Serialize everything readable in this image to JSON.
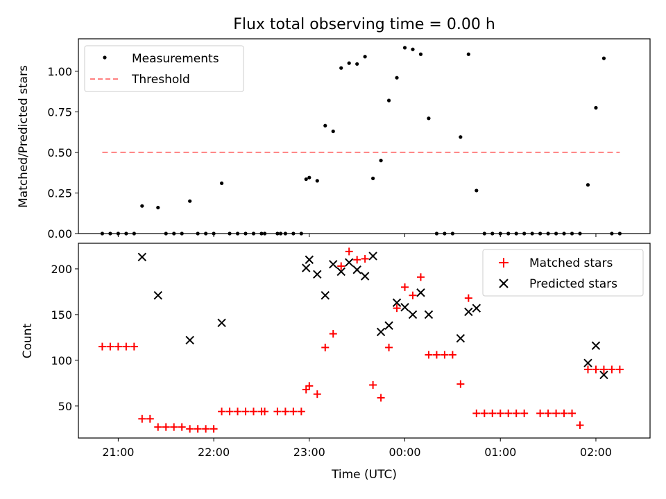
{
  "chart_data": [
    {
      "type": "scatter",
      "title": "Flux total observing time = 0.00 h",
      "xlabel": "",
      "ylabel": "Matched/Predicted stars",
      "ylim": [
        0.0,
        1.2
      ],
      "xlim": [
        "20:35",
        "02:34"
      ],
      "yticks": [
        "0.00",
        "0.25",
        "0.50",
        "0.75",
        "1.00"
      ],
      "legend_position": "top-left",
      "colors": {
        "measurements": "#000000",
        "threshold": "#ff8080"
      },
      "series": [
        {
          "name": "Measurements",
          "marker": "dot",
          "x": [
            "20:50",
            "20:55",
            "21:00",
            "21:05",
            "21:10",
            "21:15",
            "21:25",
            "21:30",
            "21:35",
            "21:40",
            "21:45",
            "21:50",
            "21:55",
            "22:00",
            "22:05",
            "22:10",
            "22:15",
            "22:20",
            "22:25",
            "22:30",
            "22:32",
            "22:40",
            "22:42",
            "22:45",
            "22:50",
            "22:55",
            "22:58",
            "23:00",
            "23:05",
            "23:10",
            "23:15",
            "23:20",
            "23:25",
            "23:30",
            "23:35",
            "23:40",
            "23:45",
            "23:50",
            "23:55",
            "00:00",
            "00:05",
            "00:10",
            "00:15",
            "00:20",
            "00:25",
            "00:30",
            "00:35",
            "00:40",
            "00:45",
            "00:50",
            "00:55",
            "01:00",
            "01:05",
            "01:10",
            "01:15",
            "01:20",
            "01:25",
            "01:30",
            "01:35",
            "01:40",
            "01:45",
            "01:50",
            "01:55",
            "02:00",
            "02:05",
            "02:10",
            "02:15"
          ],
          "y": [
            0.0,
            0.0,
            0.0,
            0.0,
            0.0,
            0.17,
            0.16,
            0.0,
            0.0,
            0.0,
            0.2,
            0.0,
            0.0,
            0.0,
            0.31,
            0.0,
            0.0,
            0.0,
            0.0,
            0.0,
            0.0,
            0.0,
            0.0,
            0.0,
            0.0,
            0.0,
            0.335,
            0.345,
            0.325,
            0.665,
            0.63,
            1.02,
            1.05,
            1.045,
            1.09,
            0.34,
            0.45,
            0.82,
            0.96,
            1.145,
            1.135,
            1.105,
            0.71,
            0.0,
            0.0,
            0.0,
            0.595,
            1.105,
            0.265,
            0.0,
            0.0,
            0.0,
            0.0,
            0.0,
            0.0,
            0.0,
            0.0,
            0.0,
            0.0,
            0.0,
            0.0,
            0.0,
            0.3,
            0.775,
            1.08,
            0.0,
            0.0
          ]
        },
        {
          "name": "Threshold",
          "style": "dashed-line",
          "x": [
            "20:50",
            "02:15"
          ],
          "y": [
            0.5,
            0.5
          ]
        }
      ]
    },
    {
      "type": "scatter",
      "title": "",
      "xlabel": "Time (UTC)",
      "ylabel": "Count",
      "ylim": [
        15,
        228
      ],
      "xlim": [
        "20:35",
        "02:34"
      ],
      "yticks": [
        "50",
        "100",
        "150",
        "200"
      ],
      "xticks": [
        "21:00",
        "22:00",
        "23:00",
        "00:00",
        "01:00",
        "02:00"
      ],
      "legend_position": "top-right",
      "colors": {
        "matched": "#ff0000",
        "predicted": "#000000"
      },
      "series": [
        {
          "name": "Matched stars",
          "marker": "plus",
          "x": [
            "20:50",
            "20:55",
            "21:00",
            "21:05",
            "21:10",
            "21:15",
            "21:20",
            "21:25",
            "21:30",
            "21:35",
            "21:40",
            "21:45",
            "21:50",
            "21:55",
            "22:00",
            "22:05",
            "22:10",
            "22:15",
            "22:20",
            "22:25",
            "22:30",
            "22:32",
            "22:40",
            "22:45",
            "22:50",
            "22:55",
            "22:58",
            "23:00",
            "23:05",
            "23:10",
            "23:15",
            "23:20",
            "23:25",
            "23:30",
            "23:35",
            "23:40",
            "23:45",
            "23:50",
            "23:55",
            "00:00",
            "00:05",
            "00:10",
            "00:15",
            "00:20",
            "00:25",
            "00:30",
            "00:35",
            "00:40",
            "00:45",
            "00:50",
            "00:55",
            "01:00",
            "01:05",
            "01:10",
            "01:15",
            "01:25",
            "01:30",
            "01:35",
            "01:40",
            "01:45",
            "01:50",
            "01:55",
            "02:00",
            "02:05",
            "02:10",
            "02:15"
          ],
          "y": [
            115,
            115,
            115,
            115,
            115,
            36,
            36,
            27,
            27,
            27,
            27,
            25,
            25,
            25,
            25,
            44,
            44,
            44,
            44,
            44,
            44,
            44,
            44,
            44,
            44,
            44,
            68,
            72,
            63,
            114,
            129,
            203,
            219,
            210,
            211,
            73,
            59,
            114,
            157,
            180,
            171,
            191,
            106,
            106,
            106,
            106,
            74,
            168,
            42,
            42,
            42,
            42,
            42,
            42,
            42,
            42,
            42,
            42,
            42,
            42,
            29,
            90,
            90,
            90,
            90,
            90
          ]
        },
        {
          "name": "Predicted stars",
          "marker": "x",
          "x": [
            "21:15",
            "21:25",
            "21:45",
            "22:05",
            "22:58",
            "23:00",
            "23:05",
            "23:10",
            "23:15",
            "23:20",
            "23:25",
            "23:30",
            "23:35",
            "23:40",
            "23:45",
            "23:50",
            "23:55",
            "00:00",
            "00:05",
            "00:10",
            "00:15",
            "00:35",
            "00:40",
            "00:45",
            "01:55",
            "02:00",
            "02:05"
          ],
          "y": [
            213,
            171,
            122,
            141,
            201,
            210,
            194,
            171,
            205,
            197,
            207,
            199,
            192,
            214,
            131,
            138,
            163,
            158,
            150,
            174,
            150,
            124,
            153,
            157,
            97,
            116,
            84
          ]
        }
      ]
    }
  ]
}
